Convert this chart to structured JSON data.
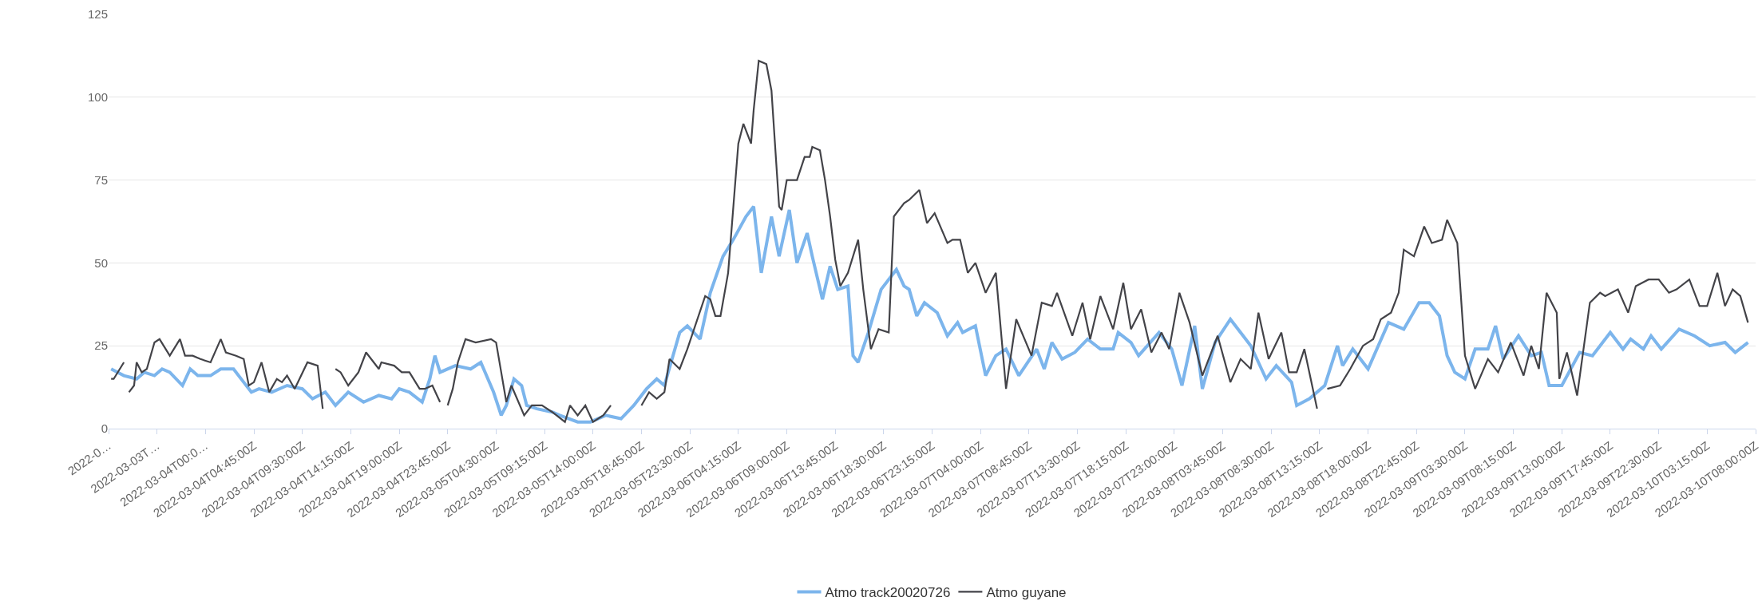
{
  "chart_data": {
    "type": "line",
    "xlim": [
      "2022-03-03T14:30",
      "2022-03-10T08:00"
    ],
    "xticks": [
      {
        "value": "2022-03-03T14:30",
        "label": "2022-0…"
      },
      {
        "value": "2022-03-03T19:15",
        "label": "2022-03-03T…"
      },
      {
        "value": "2022-03-04T00:00",
        "label": "2022-03-04T00:0…"
      },
      {
        "value": "2022-03-04T04:45",
        "label": "2022-03-04T04:45:00Z"
      },
      {
        "value": "2022-03-04T09:30",
        "label": "2022-03-04T09:30:00Z"
      },
      {
        "value": "2022-03-04T14:15",
        "label": "2022-03-04T14:15:00Z"
      },
      {
        "value": "2022-03-04T19:00",
        "label": "2022-03-04T19:00:00Z"
      },
      {
        "value": "2022-03-04T23:45",
        "label": "2022-03-04T23:45:00Z"
      },
      {
        "value": "2022-03-05T04:30",
        "label": "2022-03-05T04:30:00Z"
      },
      {
        "value": "2022-03-05T09:15",
        "label": "2022-03-05T09:15:00Z"
      },
      {
        "value": "2022-03-05T14:00",
        "label": "2022-03-05T14:00:00Z"
      },
      {
        "value": "2022-03-05T18:45",
        "label": "2022-03-05T18:45:00Z"
      },
      {
        "value": "2022-03-05T23:30",
        "label": "2022-03-05T23:30:00Z"
      },
      {
        "value": "2022-03-06T04:15",
        "label": "2022-03-06T04:15:00Z"
      },
      {
        "value": "2022-03-06T09:00",
        "label": "2022-03-06T09:00:00Z"
      },
      {
        "value": "2022-03-06T13:45",
        "label": "2022-03-06T13:45:00Z"
      },
      {
        "value": "2022-03-06T18:30",
        "label": "2022-03-06T18:30:00Z"
      },
      {
        "value": "2022-03-06T23:15",
        "label": "2022-03-06T23:15:00Z"
      },
      {
        "value": "2022-03-07T04:00",
        "label": "2022-03-07T04:00:00Z"
      },
      {
        "value": "2022-03-07T08:45",
        "label": "2022-03-07T08:45:00Z"
      },
      {
        "value": "2022-03-07T13:30",
        "label": "2022-03-07T13:30:00Z"
      },
      {
        "value": "2022-03-07T18:15",
        "label": "2022-03-07T18:15:00Z"
      },
      {
        "value": "2022-03-07T23:00",
        "label": "2022-03-07T23:00:00Z"
      },
      {
        "value": "2022-03-08T03:45",
        "label": "2022-03-08T03:45:00Z"
      },
      {
        "value": "2022-03-08T08:30",
        "label": "2022-03-08T08:30:00Z"
      },
      {
        "value": "2022-03-08T13:15",
        "label": "2022-03-08T13:15:00Z"
      },
      {
        "value": "2022-03-08T18:00",
        "label": "2022-03-08T18:00:00Z"
      },
      {
        "value": "2022-03-08T22:45",
        "label": "2022-03-08T22:45:00Z"
      },
      {
        "value": "2022-03-09T03:30",
        "label": "2022-03-09T03:30:00Z"
      },
      {
        "value": "2022-03-09T08:15",
        "label": "2022-03-09T08:15:00Z"
      },
      {
        "value": "2022-03-09T13:00",
        "label": "2022-03-09T13:00:00Z"
      },
      {
        "value": "2022-03-09T17:45",
        "label": "2022-03-09T17:45:00Z"
      },
      {
        "value": "2022-03-09T22:30",
        "label": "2022-03-09T22:30:00Z"
      },
      {
        "value": "2022-03-10T03:15",
        "label": "2022-03-10T03:15:00Z"
      },
      {
        "value": "2022-03-10T08:00",
        "label": "2022-03-10T08:00:00Z"
      }
    ],
    "ylim": [
      0,
      125
    ],
    "yticks": [
      0,
      25,
      50,
      75,
      100,
      125
    ],
    "grid": "y",
    "legend": "bottom",
    "series": [
      {
        "name": "Atmo track20020726",
        "color": "#7cb5ec",
        "x": [
          "2022-03-03T14:45",
          "2022-03-03T16:00",
          "2022-03-03T17:15",
          "2022-03-03T18:00",
          "2022-03-03T19:00",
          "2022-03-03T19:45",
          "2022-03-03T20:30",
          "2022-03-03T21:45",
          "2022-03-03T22:30",
          "2022-03-03T23:15",
          "2022-03-04T00:30",
          "2022-03-04T01:30",
          "2022-03-04T02:45",
          "2022-03-04T03:45",
          "2022-03-04T04:30",
          "2022-03-04T05:15",
          "2022-03-04T06:30",
          "2022-03-04T08:00",
          "2022-03-04T09:30",
          "2022-03-04T10:30",
          "2022-03-04T11:45",
          "2022-03-04T12:45",
          "2022-03-04T14:00",
          "2022-03-04T15:30",
          "2022-03-04T17:00",
          "2022-03-04T18:15",
          "2022-03-04T19:00",
          "2022-03-04T20:00",
          "2022-03-04T21:15",
          "2022-03-04T22:00",
          "2022-03-04T22:30",
          "2022-03-04T23:00",
          "2022-03-05T00:30",
          "2022-03-05T02:00",
          "2022-03-05T03:00",
          "2022-03-05T04:15",
          "2022-03-05T05:00",
          "2022-03-05T05:30",
          "2022-03-05T06:15",
          "2022-03-05T07:00",
          "2022-03-05T07:30",
          "2022-03-05T08:30",
          "2022-03-05T10:00",
          "2022-03-05T10:45",
          "2022-03-05T12:30",
          "2022-03-05T13:45",
          "2022-03-05T15:15",
          "2022-03-05T16:45",
          "2022-03-05T18:00",
          "2022-03-05T19:15",
          "2022-03-05T20:15",
          "2022-03-05T21:00",
          "2022-03-05T22:30",
          "2022-03-05T23:15",
          "2022-03-06T00:30",
          "2022-03-06T01:30",
          "2022-03-06T02:45",
          "2022-03-06T03:45",
          "2022-03-06T05:00",
          "2022-03-06T05:45",
          "2022-03-06T06:30",
          "2022-03-06T07:30",
          "2022-03-06T08:15",
          "2022-03-06T09:15",
          "2022-03-06T10:00",
          "2022-03-06T11:00",
          "2022-03-06T11:30",
          "2022-03-06T12:30",
          "2022-03-06T13:15",
          "2022-03-06T14:00",
          "2022-03-06T15:00",
          "2022-03-06T15:30",
          "2022-03-06T16:00",
          "2022-03-06T17:00",
          "2022-03-06T18:15",
          "2022-03-06T19:45",
          "2022-03-06T20:30",
          "2022-03-06T21:00",
          "2022-03-06T21:45",
          "2022-03-06T22:30",
          "2022-03-06T23:45",
          "2022-03-07T00:45",
          "2022-03-07T01:45",
          "2022-03-07T02:15",
          "2022-03-07T03:30",
          "2022-03-07T04:30",
          "2022-03-07T05:30",
          "2022-03-07T06:30",
          "2022-03-07T07:45",
          "2022-03-07T09:30",
          "2022-03-07T10:15",
          "2022-03-07T11:00",
          "2022-03-07T12:00",
          "2022-03-07T13:15",
          "2022-03-07T14:30",
          "2022-03-07T15:45",
          "2022-03-07T17:00",
          "2022-03-07T17:30",
          "2022-03-07T18:45",
          "2022-03-07T19:30",
          "2022-03-07T21:30",
          "2022-03-07T22:45",
          "2022-03-07T23:45",
          "2022-03-08T01:00",
          "2022-03-08T01:45",
          "2022-03-08T03:00",
          "2022-03-08T04:30",
          "2022-03-08T05:45",
          "2022-03-08T06:30",
          "2022-03-08T08:00",
          "2022-03-08T09:00",
          "2022-03-08T10:30",
          "2022-03-08T11:00",
          "2022-03-08T12:15",
          "2022-03-08T13:45",
          "2022-03-08T15:00",
          "2022-03-08T15:30",
          "2022-03-08T16:30",
          "2022-03-08T18:00",
          "2022-03-08T20:00",
          "2022-03-08T21:30",
          "2022-03-08T23:00",
          "2022-03-09T00:00",
          "2022-03-09T01:00",
          "2022-03-09T01:45",
          "2022-03-09T02:30",
          "2022-03-09T03:30",
          "2022-03-09T04:30",
          "2022-03-09T05:45",
          "2022-03-09T06:30",
          "2022-03-09T07:15",
          "2022-03-09T08:45",
          "2022-03-09T10:00",
          "2022-03-09T11:00",
          "2022-03-09T11:45",
          "2022-03-09T13:00",
          "2022-03-09T14:45",
          "2022-03-09T16:00",
          "2022-03-09T17:45",
          "2022-03-09T19:00",
          "2022-03-09T19:45",
          "2022-03-09T21:00",
          "2022-03-09T21:45",
          "2022-03-09T22:45",
          "2022-03-10T00:30",
          "2022-03-10T02:00",
          "2022-03-10T03:30",
          "2022-03-10T05:00",
          "2022-03-10T06:00",
          "2022-03-10T07:15"
        ],
        "values": [
          18,
          16,
          15,
          17,
          16,
          18,
          17,
          13,
          18,
          16,
          16,
          18,
          18,
          14,
          11,
          12,
          11,
          13,
          12,
          9,
          11,
          7,
          11,
          8,
          10,
          9,
          12,
          11,
          8,
          15,
          22,
          17,
          19,
          18,
          20,
          11,
          4,
          7,
          15,
          13,
          7,
          6,
          5,
          4,
          2,
          2,
          4,
          3,
          7,
          12,
          15,
          13,
          29,
          31,
          27,
          41,
          52,
          57,
          64,
          67,
          47,
          64,
          52,
          66,
          50,
          59,
          52,
          39,
          49,
          42,
          43,
          22,
          20,
          29,
          42,
          48,
          43,
          42,
          34,
          38,
          35,
          28,
          32,
          29,
          31,
          16,
          22,
          24,
          16,
          24,
          18,
          26,
          21,
          23,
          27,
          24,
          24,
          29,
          26,
          22,
          29,
          24,
          13,
          31,
          12,
          26,
          33,
          28,
          25,
          15,
          19,
          14,
          7,
          9,
          13,
          25,
          19,
          24,
          18,
          32,
          30,
          38,
          38,
          34,
          22,
          17,
          15,
          24,
          24,
          31,
          21,
          28,
          22,
          23,
          13,
          13,
          23,
          22,
          29,
          24,
          27,
          24,
          28,
          24,
          30,
          28,
          25,
          26,
          23,
          26
        ]
      },
      {
        "name": "Atmo guyane",
        "color": "#434348",
        "x": [
          "2022-03-03T14:45",
          "2022-03-03T15:00",
          "2022-03-03T16:00",
          "2022-03-03T16:15",
          "2022-03-03T16:30",
          "2022-03-03T17:00",
          "2022-03-03T17:15",
          "2022-03-03T17:45",
          "2022-03-03T18:15",
          "2022-03-03T19:00",
          "2022-03-03T19:30",
          "2022-03-03T20:30",
          "2022-03-03T21:30",
          "2022-03-03T22:00",
          "2022-03-03T22:45",
          "2022-03-03T23:30",
          "2022-03-04T00:30",
          "2022-03-04T01:30",
          "2022-03-04T02:00",
          "2022-03-04T03:00",
          "2022-03-04T03:45",
          "2022-03-04T04:15",
          "2022-03-04T04:45",
          "2022-03-04T05:30",
          "2022-03-04T06:15",
          "2022-03-04T07:00",
          "2022-03-04T07:30",
          "2022-03-04T08:00",
          "2022-03-04T08:45",
          "2022-03-04T10:00",
          "2022-03-04T11:00",
          "2022-03-04T11:30",
          "2022-03-04T12:15",
          "2022-03-04T12:45",
          "2022-03-04T13:15",
          "2022-03-04T14:00",
          "2022-03-04T15:00",
          "2022-03-04T15:45",
          "2022-03-04T17:00",
          "2022-03-04T17:15",
          "2022-03-04T18:30",
          "2022-03-04T19:15",
          "2022-03-04T20:00",
          "2022-03-04T21:00",
          "2022-03-04T21:30",
          "2022-03-04T22:15",
          "2022-03-04T23:00",
          "2022-03-04T23:15",
          "2022-03-04T23:45",
          "2022-03-05T00:15",
          "2022-03-05T00:45",
          "2022-03-05T01:30",
          "2022-03-05T02:30",
          "2022-03-05T04:00",
          "2022-03-05T04:30",
          "2022-03-05T05:00",
          "2022-03-05T05:30",
          "2022-03-05T06:00",
          "2022-03-05T07:15",
          "2022-03-05T08:00",
          "2022-03-05T09:00",
          "2022-03-05T10:00",
          "2022-03-05T11:15",
          "2022-03-05T11:45",
          "2022-03-05T12:30",
          "2022-03-05T13:15",
          "2022-03-05T14:00",
          "2022-03-05T15:00",
          "2022-03-05T15:45",
          "2022-03-05T17:00",
          "2022-03-05T18:45",
          "2022-03-05T19:30",
          "2022-03-05T20:15",
          "2022-03-05T21:00",
          "2022-03-05T21:30",
          "2022-03-05T22:30",
          "2022-03-05T23:15",
          "2022-03-06T01:00",
          "2022-03-06T01:30",
          "2022-03-06T02:00",
          "2022-03-06T02:30",
          "2022-03-06T03:15",
          "2022-03-06T04:15",
          "2022-03-06T04:45",
          "2022-03-06T05:30",
          "2022-03-06T05:45",
          "2022-03-06T06:15",
          "2022-03-06T07:00",
          "2022-03-06T07:30",
          "2022-03-06T08:15",
          "2022-03-06T08:30",
          "2022-03-06T09:00",
          "2022-03-06T10:00",
          "2022-03-06T10:45",
          "2022-03-06T11:15",
          "2022-03-06T11:30",
          "2022-03-06T12:15",
          "2022-03-06T12:45",
          "2022-03-06T13:15",
          "2022-03-06T13:45",
          "2022-03-06T14:15",
          "2022-03-06T15:00",
          "2022-03-06T16:00",
          "2022-03-06T16:30",
          "2022-03-06T17:15",
          "2022-03-06T18:00",
          "2022-03-06T19:00",
          "2022-03-06T19:30",
          "2022-03-06T20:30",
          "2022-03-06T21:00",
          "2022-03-06T22:00",
          "2022-03-06T22:45",
          "2022-03-06T23:30",
          "2022-03-07T00:45",
          "2022-03-07T01:15",
          "2022-03-07T02:00",
          "2022-03-07T02:45",
          "2022-03-07T03:30",
          "2022-03-07T04:30",
          "2022-03-07T05:30",
          "2022-03-07T06:30",
          "2022-03-07T07:30",
          "2022-03-07T09:00",
          "2022-03-07T10:00",
          "2022-03-07T11:00",
          "2022-03-07T11:30",
          "2022-03-07T13:00",
          "2022-03-07T14:00",
          "2022-03-07T14:45",
          "2022-03-07T15:45",
          "2022-03-07T17:00",
          "2022-03-07T18:00",
          "2022-03-07T18:45",
          "2022-03-07T19:45",
          "2022-03-07T20:45",
          "2022-03-07T21:45",
          "2022-03-07T22:30",
          "2022-03-07T23:30",
          "2022-03-08T00:30",
          "2022-03-08T01:45",
          "2022-03-08T03:15",
          "2022-03-08T04:30",
          "2022-03-08T05:30",
          "2022-03-08T06:30",
          "2022-03-08T07:15",
          "2022-03-08T08:15",
          "2022-03-08T09:30",
          "2022-03-08T10:15",
          "2022-03-08T11:00",
          "2022-03-08T11:45",
          "2022-03-08T13:00",
          "2022-03-08T13:30",
          "2022-03-08T14:00",
          "2022-03-08T15:15",
          "2022-03-08T16:15",
          "2022-03-08T17:30",
          "2022-03-08T18:30",
          "2022-03-08T19:15",
          "2022-03-08T20:15",
          "2022-03-08T21:00",
          "2022-03-08T21:30",
          "2022-03-08T22:30",
          "2022-03-08T23:30",
          "2022-03-09T00:15",
          "2022-03-09T01:15",
          "2022-03-09T01:45",
          "2022-03-09T02:45",
          "2022-03-09T03:30",
          "2022-03-09T04:30",
          "2022-03-09T05:45",
          "2022-03-09T06:45",
          "2022-03-09T08:00",
          "2022-03-09T09:15",
          "2022-03-09T10:00",
          "2022-03-09T10:45",
          "2022-03-09T11:30",
          "2022-03-09T12:30",
          "2022-03-09T12:45",
          "2022-03-09T13:30",
          "2022-03-09T14:30",
          "2022-03-09T15:45",
          "2022-03-09T16:45",
          "2022-03-09T17:15",
          "2022-03-09T18:30",
          "2022-03-09T19:30",
          "2022-03-09T20:15",
          "2022-03-09T21:30",
          "2022-03-09T22:30",
          "2022-03-09T23:30",
          "2022-03-10T00:15",
          "2022-03-10T01:30",
          "2022-03-10T02:30",
          "2022-03-10T03:15",
          "2022-03-10T04:15",
          "2022-03-10T05:00",
          "2022-03-10T05:45",
          "2022-03-10T06:30",
          "2022-03-10T07:15"
        ],
        "values": [
          15,
          15,
          20,
          null,
          11,
          13,
          20,
          17,
          18,
          26,
          27,
          22,
          27,
          22,
          22,
          21,
          20,
          27,
          23,
          22,
          21,
          13,
          14,
          20,
          11,
          15,
          14,
          16,
          12,
          20,
          19,
          6,
          null,
          18,
          17,
          13,
          17,
          23,
          18,
          20,
          19,
          17,
          17,
          12,
          12,
          13,
          8,
          null,
          7,
          12,
          20,
          27,
          26,
          27,
          26,
          17,
          8,
          13,
          4,
          7,
          7,
          5,
          2,
          7,
          4,
          7,
          2,
          4,
          7,
          null,
          7,
          11,
          9,
          11,
          21,
          18,
          24,
          40,
          39,
          34,
          34,
          47,
          86,
          92,
          86,
          96,
          111,
          110,
          102,
          67,
          66,
          75,
          75,
          82,
          82,
          85,
          84,
          75,
          64,
          51,
          43,
          47,
          57,
          42,
          24,
          30,
          29,
          64,
          68,
          69,
          72,
          62,
          65,
          56,
          57,
          57,
          47,
          50,
          41,
          47,
          12,
          33,
          22,
          38,
          37,
          41,
          28,
          38,
          27,
          40,
          30,
          44,
          30,
          36,
          23,
          29,
          24,
          41,
          32,
          16,
          28,
          14,
          21,
          18,
          35,
          21,
          29,
          17,
          17,
          24,
          6,
          null,
          12,
          13,
          18,
          25,
          27,
          33,
          35,
          41,
          54,
          52,
          61,
          56,
          57,
          63,
          56,
          22,
          12,
          21,
          17,
          26,
          16,
          25,
          18,
          41,
          35,
          15,
          23,
          10,
          38,
          41,
          40,
          42,
          35,
          43,
          45,
          45,
          41,
          42,
          45,
          37,
          37,
          47,
          37,
          42,
          40,
          32
        ]
      }
    ]
  }
}
